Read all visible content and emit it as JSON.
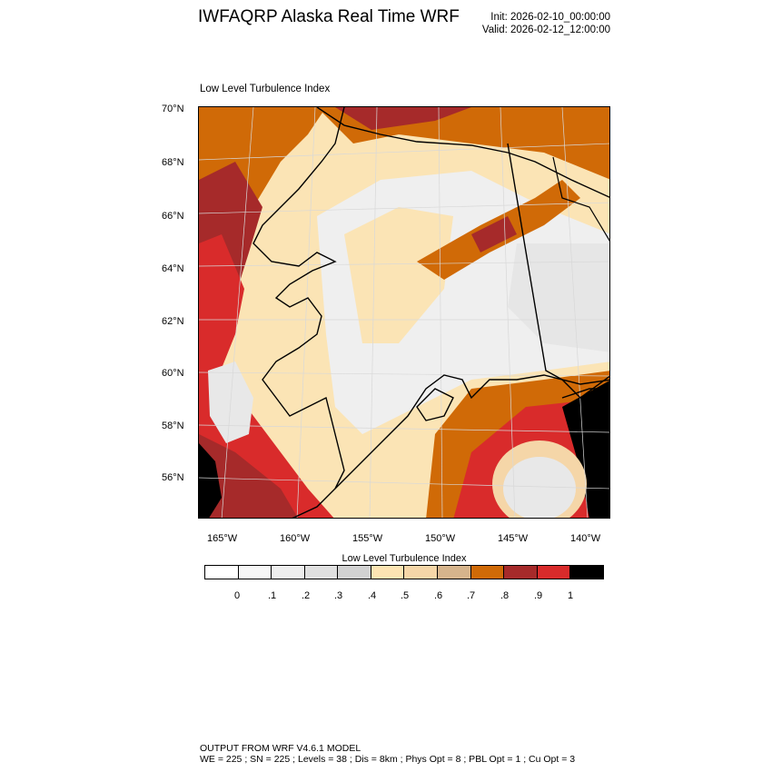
{
  "header": {
    "title": "IWFAQRP Alaska Real Time WRF",
    "init": "Init: 2026-02-10_00:00:00",
    "valid": "Valid: 2026-02-12_12:00:00"
  },
  "plot": {
    "title": "Low Level Turbulence Index",
    "lat_labels": [
      "70°N",
      "68°N",
      "66°N",
      "64°N",
      "62°N",
      "60°N",
      "58°N",
      "56°N"
    ],
    "lon_labels": [
      "165°W",
      "160°W",
      "155°W",
      "150°W",
      "145°W",
      "140°W"
    ]
  },
  "colorbar": {
    "title": "Low Level Turbulence Index",
    "labels": [
      "0",
      ".1",
      ".2",
      ".3",
      ".4",
      ".5",
      ".6",
      ".7",
      ".8",
      ".9",
      "1"
    ],
    "colors": [
      "#ffffff",
      "#f7f7f7",
      "#eeeeee",
      "#e0e0e0",
      "#d2d2d2",
      "#fde4b3",
      "#f5d6a8",
      "#d6b48c",
      "#d06a07",
      "#a62a2a",
      "#d92b2b",
      "#000000"
    ]
  },
  "footer": {
    "line1": "OUTPUT FROM WRF V4.6.1 MODEL",
    "line2": "WE = 225 ; SN = 225 ; Levels = 38 ; Dis = 8km ; Phys Opt = 8 ; PBL Opt = 1 ; Cu Opt = 3"
  }
}
